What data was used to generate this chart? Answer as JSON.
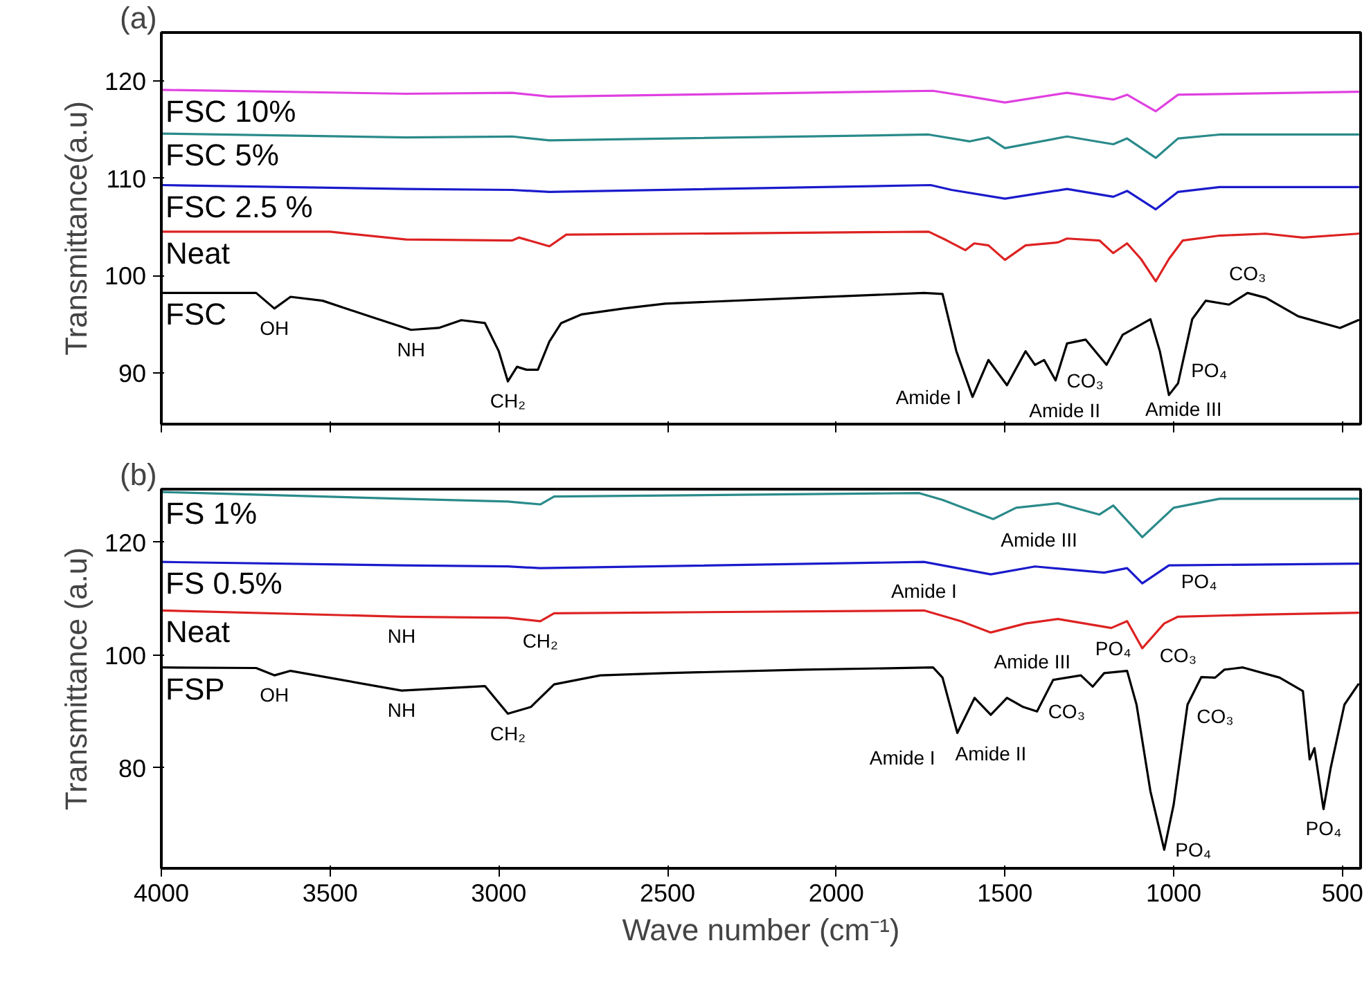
{
  "chart_data": [
    {
      "type": "line",
      "title": "(a)",
      "ylabel": "Transmittance(a.u)",
      "xlim": [
        4000,
        446
      ],
      "xticks": [
        4000,
        3500,
        3000,
        2500,
        2000,
        1500,
        1000,
        500
      ],
      "ylim": [
        84.7,
        125
      ],
      "yticks": [
        90,
        100,
        110,
        120
      ],
      "tick_labels": "y",
      "series": [
        {
          "name": "FSC 10%",
          "color": "#e040e0",
          "x": [
            4000,
            3275,
            2960,
            2850,
            1713,
            1604,
            1500,
            1316,
            1179,
            1138,
            1053,
            987,
            453
          ],
          "values": [
            119.1,
            118.7,
            118.8,
            118.4,
            119.0,
            118.4,
            117.8,
            118.8,
            118.1,
            118.6,
            116.9,
            118.6,
            118.9
          ]
        },
        {
          "name": "FSC 5%",
          "color": "#2a8a8a",
          "x": [
            4000,
            3275,
            2960,
            2850,
            1726,
            1604,
            1549,
            1500,
            1316,
            1179,
            1138,
            1053,
            987,
            864,
            453
          ],
          "values": [
            114.6,
            114.2,
            114.3,
            113.9,
            114.5,
            113.8,
            114.2,
            113.1,
            114.3,
            113.5,
            114.1,
            112.1,
            114.1,
            114.5,
            114.5
          ]
        },
        {
          "name": "FSC 2.5 %",
          "color": "#1a1acc",
          "x": [
            4000,
            3275,
            2960,
            2850,
            1720,
            1658,
            1500,
            1316,
            1179,
            1138,
            1053,
            987,
            864,
            453
          ],
          "values": [
            109.3,
            108.9,
            108.8,
            108.6,
            109.3,
            108.8,
            107.9,
            108.9,
            108.1,
            108.7,
            106.8,
            108.6,
            109.1,
            109.1
          ]
        },
        {
          "name": "Neat",
          "color": "#dd2222",
          "x": [
            4000,
            3500,
            3275,
            2960,
            2940,
            2850,
            2800,
            1726,
            1672,
            1617,
            1591,
            1549,
            1500,
            1439,
            1343,
            1316,
            1220,
            1179,
            1138,
            1097,
            1053,
            1014,
            973,
            864,
            727,
            617,
            453
          ],
          "values": [
            104.5,
            104.5,
            103.7,
            103.6,
            103.9,
            103.0,
            104.2,
            104.5,
            103.6,
            102.6,
            103.3,
            103.1,
            101.6,
            103.1,
            103.4,
            103.8,
            103.6,
            102.3,
            103.3,
            101.7,
            99.4,
            101.7,
            103.6,
            104.1,
            104.3,
            103.9,
            104.3
          ]
        },
        {
          "name": "FSC",
          "color": "#000000",
          "x": [
            4000,
            3719,
            3665,
            3617,
            3522,
            3384,
            3260,
            3178,
            3111,
            3041,
            3000,
            2973,
            2946,
            2918,
            2884,
            2850,
            2815,
            2754,
            2630,
            2507,
            2096,
            1740,
            1685,
            1644,
            1596,
            1549,
            1494,
            1439,
            1411,
            1384,
            1350,
            1316,
            1261,
            1199,
            1151,
            1069,
            1041,
            1014,
            987,
            945,
            905,
            836,
            781,
            727,
            631,
            507,
            453
          ],
          "values": [
            98.2,
            98.2,
            96.6,
            97.8,
            97.4,
            95.8,
            94.4,
            94.6,
            95.4,
            95.1,
            92.2,
            89.1,
            90.6,
            90.3,
            90.3,
            93.2,
            95.1,
            96.0,
            96.6,
            97.1,
            97.7,
            98.2,
            98.1,
            92.2,
            87.5,
            91.3,
            88.7,
            92.2,
            90.8,
            91.3,
            89.2,
            93.0,
            93.4,
            90.8,
            93.9,
            95.5,
            92.2,
            87.7,
            88.9,
            95.5,
            97.4,
            97.0,
            98.2,
            97.7,
            95.8,
            94.6,
            95.4
          ]
        }
      ],
      "annotations": [
        {
          "text": "OH",
          "x": 3665,
          "y": 96.6
        },
        {
          "text": "NH",
          "x": 3260,
          "y": 94.4
        },
        {
          "text": "CH₂",
          "x": 2973,
          "y": 89.1
        },
        {
          "text": "Amide I",
          "x": 1596,
          "y": 87.5
        },
        {
          "text": "Amide II",
          "x": 1494,
          "y": 88.7
        },
        {
          "text": "CO₃",
          "x": 1350,
          "y": 89.2
        },
        {
          "text": "Amide III",
          "x": 1199,
          "y": 90.8
        },
        {
          "text": "PO₄",
          "x": 1014,
          "y": 87.7
        },
        {
          "text": "CO₃",
          "x": 781,
          "y": 98.2
        }
      ]
    },
    {
      "type": "line",
      "title": "(b)",
      "ylabel": "Transmittance (a.u)",
      "xlabel": "Wave number (cm⁻¹)",
      "xlim": [
        4000,
        446
      ],
      "xticks": [
        4000,
        3500,
        3000,
        2500,
        2000,
        1500,
        1000,
        500
      ],
      "ylim": [
        62.2,
        129.4
      ],
      "yticks": [
        80,
        100,
        120
      ],
      "series": [
        {
          "name": "FS 1%",
          "color": "#2a8a8a",
          "x": [
            4000,
            3288,
            2973,
            2877,
            2836,
            1754,
            1685,
            1535,
            1467,
            1343,
            1220,
            1179,
            1093,
            1000,
            864,
            453
          ],
          "values": [
            128.9,
            127.7,
            127.2,
            126.7,
            128.1,
            128.7,
            127.5,
            124.1,
            126.1,
            126.9,
            124.9,
            126.5,
            120.9,
            126.1,
            127.7,
            127.7
          ]
        },
        {
          "name": "FS 0.5%",
          "color": "#1a1acc",
          "x": [
            4000,
            3288,
            2973,
            2877,
            1740,
            1542,
            1411,
            1206,
            1138,
            1093,
            1014,
            453
          ],
          "values": [
            116.5,
            115.9,
            115.7,
            115.4,
            116.5,
            114.3,
            115.7,
            114.6,
            115.4,
            112.7,
            115.9,
            116.2
          ]
        },
        {
          "name": "Neat",
          "color": "#dd2222",
          "x": [
            4000,
            3288,
            2973,
            2877,
            2836,
            1740,
            1631,
            1542,
            1439,
            1343,
            1185,
            1138,
            1093,
            1028,
            987,
            727,
            453
          ],
          "values": [
            107.9,
            106.8,
            106.6,
            106.0,
            107.4,
            107.9,
            106.0,
            104.0,
            105.6,
            106.4,
            104.8,
            106.0,
            101.2,
            105.6,
            106.8,
            107.2,
            107.5
          ]
        },
        {
          "name": "FSP",
          "color": "#000000",
          "x": [
            4000,
            3719,
            3665,
            3617,
            3288,
            3041,
            2973,
            2905,
            2836,
            2699,
            2507,
            2096,
            1713,
            1685,
            1641,
            1590,
            1542,
            1494,
            1446,
            1405,
            1357,
            1275,
            1240,
            1206,
            1138,
            1110,
            1069,
            1028,
            1000,
            959,
            918,
            877,
            850,
            795,
            686,
            617,
            597,
            583,
            556,
            535,
            494,
            453
          ],
          "values": [
            97.8,
            97.7,
            96.4,
            97.2,
            93.7,
            94.5,
            89.6,
            90.8,
            94.8,
            96.4,
            96.8,
            97.4,
            97.8,
            96.0,
            86.2,
            92.4,
            89.4,
            92.4,
            90.8,
            90.0,
            95.6,
            96.4,
            94.4,
            96.8,
            97.2,
            91.2,
            75.9,
            65.5,
            73.5,
            91.2,
            96.1,
            96.0,
            97.4,
            97.8,
            96.0,
            93.6,
            81.5,
            83.5,
            72.7,
            79.9,
            91.2,
            94.8
          ]
        }
      ],
      "annotations": [
        {
          "text": "NH",
          "x": 3288,
          "y": 106.8
        },
        {
          "text": "CH₂",
          "x": 2877,
          "y": 106.0
        },
        {
          "text": "OH",
          "x": 3665,
          "y": 96.4
        },
        {
          "text": "NH",
          "x": 3288,
          "y": 93.7
        },
        {
          "text": "CH₂",
          "x": 2973,
          "y": 89.6
        },
        {
          "text": "Amide III",
          "x": 1220,
          "y": 124.9
        },
        {
          "text": "PO₄",
          "x": 1093,
          "y": 120.9
        },
        {
          "text": "Amide I",
          "x": 1740,
          "y": 107.9
        },
        {
          "text": "PO₄",
          "x": 1093,
          "y": 101.2
        },
        {
          "text": "CO₃",
          "x": 987,
          "y": 106.8
        },
        {
          "text": "Amide III",
          "x": 1240,
          "y": 94.4
        },
        {
          "text": "Amide II",
          "x": 1542,
          "y": 89.4
        },
        {
          "text": "CO₃",
          "x": 1405,
          "y": 90.0
        },
        {
          "text": "Amide I",
          "x": 1641,
          "y": 86.2
        },
        {
          "text": "CO₃",
          "x": 877,
          "y": 96.0
        },
        {
          "text": "PO₄",
          "x": 1028,
          "y": 65.5
        },
        {
          "text": "PO₄",
          "x": 556,
          "y": 72.7
        }
      ]
    }
  ]
}
